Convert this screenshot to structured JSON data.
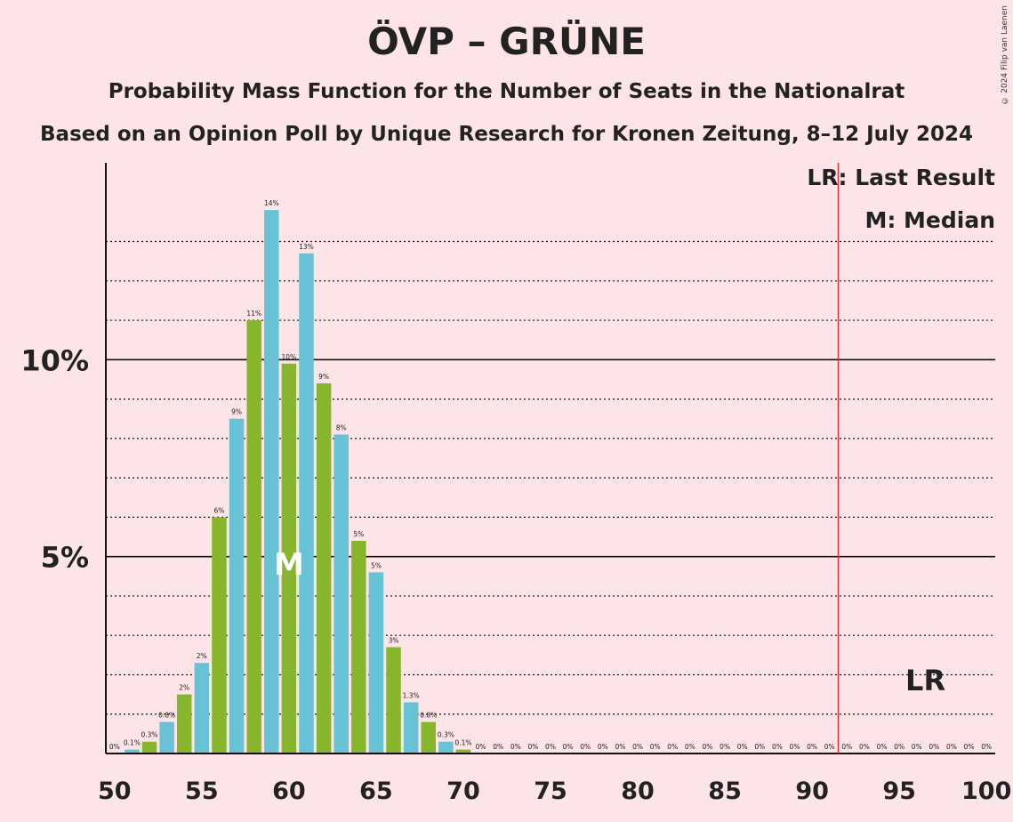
{
  "title": "ÖVP – GRÜNE",
  "subtitle": "Probability Mass Function for the Number of Seats in the Nationalrat",
  "source": "Based on an Opinion Poll by Unique Research for Kronen Zeitung, 8–12 July 2024",
  "copyright": "© 2024 Filip van Laenen",
  "legend": {
    "last_result": "LR: Last Result",
    "median": "M: Median"
  },
  "markers": {
    "median_label": "M",
    "median_seat": 60,
    "last_result_label": "LR",
    "last_result_seat": 92
  },
  "colors": {
    "background": "#fde4e7",
    "bar_blue": "#66c2d4",
    "bar_green": "#87b52c",
    "last_result_line": "#e0303a",
    "text": "#222222"
  },
  "chart_data": {
    "type": "bar",
    "x": [
      50,
      51,
      52,
      53,
      54,
      55,
      56,
      57,
      58,
      59,
      60,
      61,
      62,
      63,
      64,
      65,
      66,
      67,
      68,
      69,
      70,
      71,
      72,
      73,
      74,
      75,
      76,
      77,
      78,
      79,
      80,
      81,
      82,
      83,
      84,
      85,
      86,
      87,
      88,
      89,
      90,
      91,
      92,
      93,
      94,
      95,
      96,
      97,
      98,
      99,
      100
    ],
    "values": [
      0,
      0.1,
      0.3,
      0.8,
      1.5,
      2.3,
      6.0,
      8.5,
      11.0,
      13.8,
      9.9,
      12.7,
      9.4,
      8.1,
      5.4,
      4.6,
      2.7,
      1.3,
      0.8,
      0.3,
      0.1,
      0,
      0,
      0,
      0,
      0,
      0,
      0,
      0,
      0,
      0,
      0,
      0,
      0,
      0,
      0,
      0,
      0,
      0,
      0,
      0,
      0,
      0,
      0,
      0,
      0,
      0,
      0,
      0,
      0,
      0
    ],
    "value_labels": [
      "0%",
      "0.1%",
      "0.3%",
      "0.8%",
      "2%",
      "2%",
      "6%",
      "9%",
      "11%",
      "14%",
      "10%",
      "13%",
      "9%",
      "8%",
      "5%",
      "5%",
      "3%",
      "1.3%",
      "0.8%",
      "0.3%",
      "0.1%",
      "0%",
      "0%",
      "0%",
      "0%",
      "0%",
      "0%",
      "0%",
      "0%",
      "0%",
      "0%",
      "0%",
      "0%",
      "0%",
      "0%",
      "0%",
      "0%",
      "0%",
      "0%",
      "0%",
      "0%",
      "0%",
      "0%",
      "0%",
      "0%",
      "0%",
      "0%",
      "0%",
      "0%",
      "0%",
      "0%"
    ],
    "x_ticks": [
      50,
      55,
      60,
      65,
      70,
      75,
      80,
      85,
      90,
      95,
      100
    ],
    "x_tick_labels": [
      "50",
      "55",
      "60",
      "65",
      "70",
      "75",
      "80",
      "85",
      "90",
      "95",
      "100"
    ],
    "y_ticks": [
      5,
      10
    ],
    "y_tick_labels": [
      "5%",
      "10%"
    ],
    "xlim": [
      49.5,
      100.5
    ],
    "ylim": [
      0,
      15
    ],
    "grid": "dotted every 1%, solid at 5% and 10%"
  }
}
